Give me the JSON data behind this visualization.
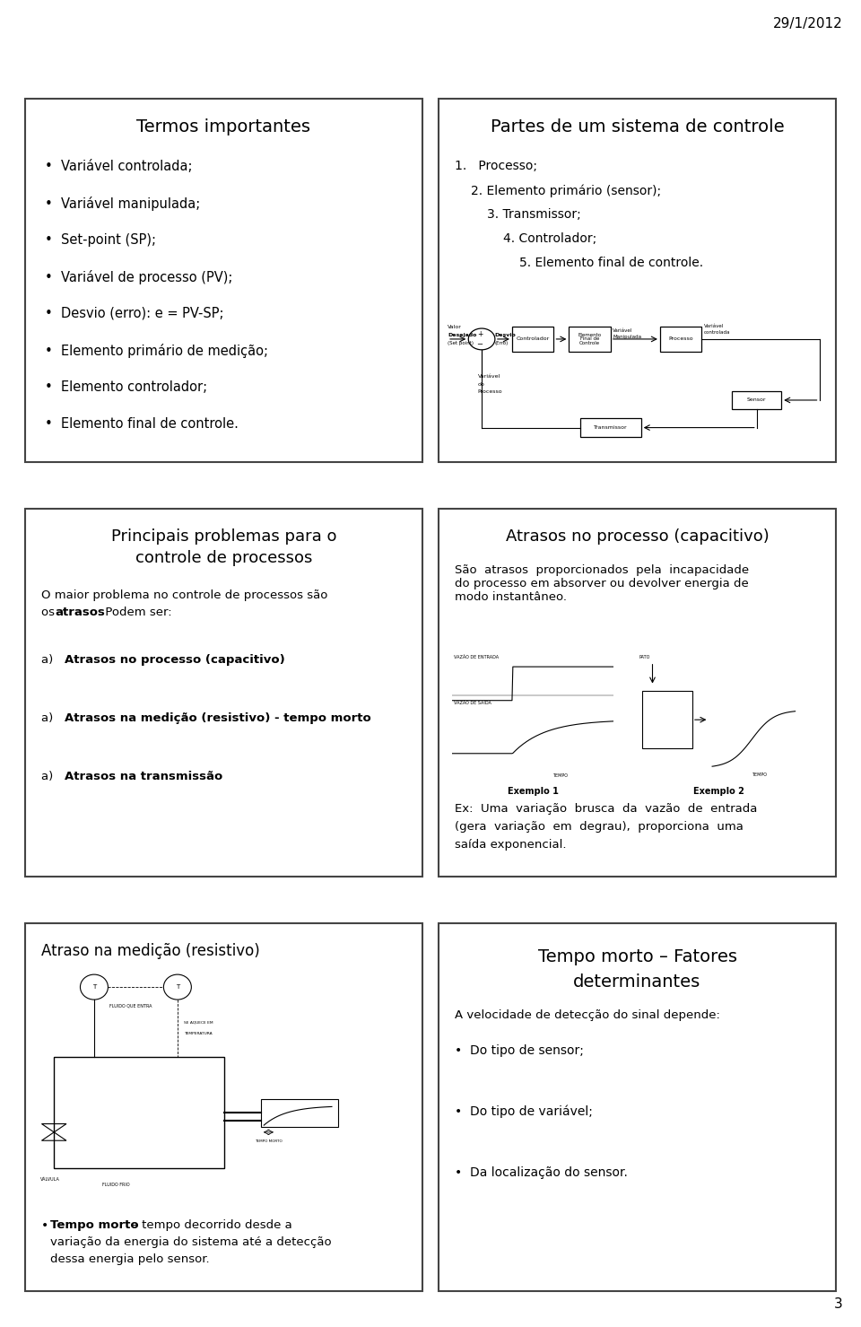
{
  "bg_color": "#ffffff",
  "date_text": "29/1/2012",
  "page_number": "3",
  "panel_border": "#444444",
  "panel_bg": "#ffffff",
  "panels": [
    {
      "title": "Termos importantes",
      "bullets": [
        "Variável controlada;",
        "Variável manipulada;",
        "Set-point (SP);",
        "Variável de processo (PV);",
        "Desvio (erro): e = PV-SP;",
        "Elemento primário de medição;",
        "Elemento controlador;",
        "Elemento final de controle."
      ]
    },
    {
      "title": "Partes de um sistema de controle",
      "numbered_items": [
        {
          "indent": 0,
          "text": "1.   Processo;"
        },
        {
          "indent": 30,
          "text": "2. Elemento primário (sensor);"
        },
        {
          "indent": 60,
          "text": "3. Transmissor;"
        },
        {
          "indent": 90,
          "text": "4. Controlador;"
        },
        {
          "indent": 120,
          "text": "5. Elemento final de controle."
        }
      ]
    },
    {
      "title_line1": "Principais problemas para o",
      "title_line2": "controle de processos",
      "intro_normal": "O maior problema no controle de processos são\nos ",
      "intro_bold": "atrasos",
      "intro_end": ". Podem ser:",
      "items": [
        "Atrasos no processo (capacitivo)",
        "Atrasos na medição (resistivo) - tempo morto",
        "Atrasos na transmissão"
      ]
    },
    {
      "title": "Atrasos no processo (capacitivo)",
      "para": "São  atrasos  proporcionados  pela  incapacidade\ndo processo em absorver ou devolver energia de\nmodo instantâneo.",
      "ex_text_line1": "Ex:  Uma  variação  brusca  da  vazão  de  entrada",
      "ex_text_line2": "(gera  variação  em  degrau),  proporciona  uma",
      "ex_text_line3": "saída exponencial."
    },
    {
      "title": "Atraso na medição (resistivo)",
      "bullet_bold": "Tempo morto",
      "bullet_rest_line1": " – tempo decorrido desde a",
      "bullet_rest_line2": "variação da energia do sistema até a detecção",
      "bullet_rest_line3": "dessa energia pelo sensor."
    },
    {
      "title_line1": "Tempo morto – Fatores",
      "title_line2": "determinantes",
      "intro": "A velocidade de detecção do sinal depende:",
      "bullets": [
        "Do tipo de sensor;",
        "Do tipo de variável;",
        "Da localização do sensor."
      ]
    }
  ]
}
